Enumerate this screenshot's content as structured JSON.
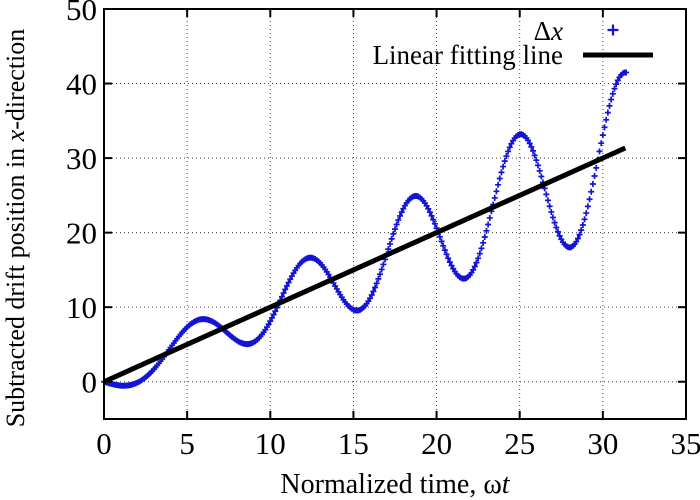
{
  "figure": {
    "background": "#ffffff",
    "border_color": "#000000"
  },
  "colors": {
    "marker_blue": "#1414d6",
    "fit_line_black": "#000000",
    "grid_gray": "#444444",
    "axis_black": "#000000"
  },
  "chart_data": {
    "type": "scatter",
    "title": "",
    "xlabel": "Normalized time, ωt",
    "ylabel": "Subtracted drift position in x-direction",
    "xlabel_parts": [
      {
        "text": "Normalized time, ",
        "italic": false
      },
      {
        "text": "ω",
        "italic": false
      },
      {
        "text": "t",
        "italic": true
      }
    ],
    "ylabel_parts": [
      {
        "text": "Subtracted drift position in ",
        "italic": false
      },
      {
        "text": "x",
        "italic": true
      },
      {
        "text": "-direction",
        "italic": false
      }
    ],
    "xlim": [
      0,
      35
    ],
    "ylim": [
      -5,
      50
    ],
    "xticks": [
      0,
      5,
      10,
      15,
      20,
      25,
      30,
      35
    ],
    "yticks": [
      0,
      10,
      20,
      30,
      40,
      50
    ],
    "grid": {
      "show": true,
      "style": "dotted",
      "x_lines": [
        5,
        10,
        15,
        20,
        25,
        30
      ],
      "y_lines": [
        0,
        10,
        20,
        30,
        40
      ]
    },
    "legend": {
      "position": "top-right-inside"
    },
    "series": [
      {
        "name": "Δx",
        "label_parts": [
          {
            "text": "Δ",
            "italic": false
          },
          {
            "text": "x",
            "italic": true
          }
        ],
        "type": "scatter",
        "marker": "plus",
        "color": "#1414d6",
        "model": {
          "description": "x(t) = 0.985*t + 0.335*t*cos(t) - 2*sin(t)",
          "linear_coef": 0.985,
          "t_cos_coef": 0.335,
          "sin_coef": -2.0,
          "t_start": 0,
          "t_end": 31.4,
          "t_step": 0.1
        },
        "observed_extrema": [
          [
            0,
            0
          ],
          [
            1.4,
            -0.5
          ],
          [
            6.3,
            8.5
          ],
          [
            9.1,
            6.0
          ],
          [
            12.5,
            16.4
          ],
          [
            15.2,
            9.8
          ],
          [
            18.7,
            24.8
          ],
          [
            21.8,
            14.4
          ],
          [
            25.0,
            33.0
          ],
          [
            27.8,
            18.5
          ],
          [
            31.3,
            41.3
          ]
        ]
      },
      {
        "name": "Linear fitting line",
        "label_parts": [
          {
            "text": "Linear fitting line",
            "italic": false
          }
        ],
        "type": "line",
        "color": "#000000",
        "stroke_width": 5,
        "model": {
          "description": "x(t) = 1.0*t",
          "slope": 1.0,
          "intercept": 0.0,
          "t_start": 0,
          "t_end": 31.35
        }
      }
    ]
  }
}
